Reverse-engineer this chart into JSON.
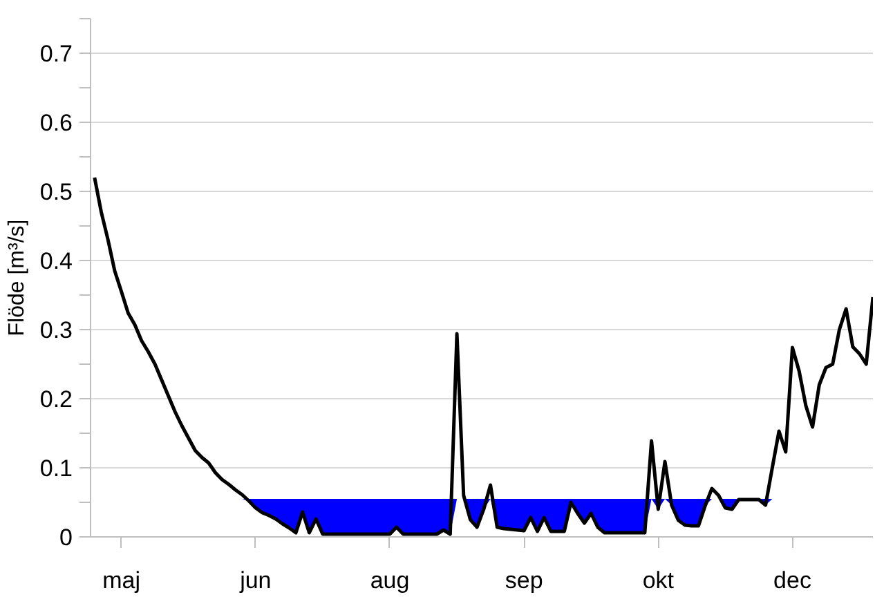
{
  "chart_data": {
    "type": "line",
    "ylabel": "Flöde [m³/s]",
    "ylim": [
      0,
      0.75
    ],
    "categories": [
      null,
      null,
      null,
      null,
      "maj",
      null,
      null,
      null,
      null,
      null,
      null,
      null,
      null,
      null,
      null,
      null,
      null,
      null,
      null,
      null,
      null,
      null,
      null,
      null,
      "jun",
      null,
      null,
      null,
      null,
      null,
      null,
      null,
      null,
      null,
      null,
      null,
      null,
      null,
      null,
      null,
      null,
      null,
      null,
      null,
      "aug",
      null,
      null,
      null,
      null,
      null,
      null,
      null,
      null,
      null,
      null,
      null,
      null,
      null,
      null,
      null,
      null,
      null,
      null,
      null,
      "sep",
      null,
      null,
      null,
      null,
      null,
      null,
      null,
      null,
      null,
      null,
      null,
      null,
      null,
      null,
      null,
      null,
      null,
      null,
      null,
      "okt",
      null,
      null,
      null,
      null,
      null,
      null,
      null,
      null,
      null,
      null,
      null,
      null,
      null,
      null,
      null,
      null,
      null,
      null,
      null,
      "dec",
      null,
      null,
      null,
      null,
      null,
      null,
      null,
      null,
      null,
      null,
      null,
      null
    ],
    "yticks": [
      0,
      0.1,
      0.2,
      0.3,
      0.4,
      0.5,
      0.6,
      0.7
    ],
    "grid": "y",
    "marker": "none",
    "line_style": "solid",
    "series": [
      {
        "color": "#000000",
        "values": [
          0.52,
          0.47,
          0.43,
          0.385,
          0.355,
          0.324,
          0.307,
          0.284,
          0.268,
          0.25,
          0.227,
          0.204,
          0.181,
          0.161,
          0.143,
          0.125,
          0.115,
          0.107,
          0.093,
          0.083,
          0.076,
          0.068,
          0.061,
          0.052,
          0.042,
          0.035,
          0.031,
          0.026,
          0.019,
          0.013,
          0.006,
          0.036,
          0.006,
          0.026,
          0.004,
          0.004,
          0.004,
          0.004,
          0.004,
          0.004,
          0.004,
          0.004,
          0.004,
          0.004,
          0.004,
          0.014,
          0.004,
          0.004,
          0.004,
          0.004,
          0.004,
          0.004,
          0.01,
          0.004,
          0.294,
          0.06,
          0.025,
          0.014,
          0.04,
          0.075,
          0.014,
          0.012,
          0.011,
          0.01,
          0.009,
          0.028,
          0.008,
          0.028,
          0.008,
          0.008,
          0.008,
          0.05,
          0.034,
          0.02,
          0.034,
          0.014,
          0.006,
          0.006,
          0.006,
          0.006,
          0.006,
          0.006,
          0.006,
          0.139,
          0.04,
          0.109,
          0.046,
          0.024,
          0.017,
          0.016,
          0.016,
          0.045,
          0.07,
          0.06,
          0.042,
          0.04,
          0.054,
          0.054,
          0.054,
          0.054,
          0.046,
          0.1,
          0.153,
          0.123,
          0.274,
          0.24,
          0.19,
          0.159,
          0.22,
          0.245,
          0.25,
          0.3,
          0.33,
          0.275,
          0.265,
          0.25,
          0.347
        ]
      },
      {
        "type": "area",
        "color": "#0000ff",
        "values": [
          null,
          null,
          null,
          null,
          null,
          null,
          null,
          null,
          null,
          null,
          null,
          null,
          null,
          null,
          null,
          null,
          null,
          null,
          null,
          null,
          null,
          null,
          0.055,
          0.055,
          0.055,
          0.055,
          0.055,
          0.055,
          0.055,
          0.055,
          0.055,
          0.055,
          0.055,
          0.055,
          0.055,
          0.055,
          0.055,
          0.055,
          0.055,
          0.055,
          0.055,
          0.055,
          0.055,
          0.055,
          0.055,
          0.055,
          0.055,
          0.055,
          0.055,
          0.055,
          0.055,
          0.055,
          0.055,
          0.055,
          0.055,
          0.055,
          0.055,
          0.055,
          0.055,
          0.055,
          0.055,
          0.055,
          0.055,
          0.055,
          0.055,
          0.055,
          0.055,
          0.055,
          0.055,
          0.055,
          0.055,
          0.055,
          0.055,
          0.055,
          0.055,
          0.055,
          0.055,
          0.055,
          0.055,
          0.055,
          0.055,
          0.055,
          0.055,
          0.055,
          0.055,
          0.055,
          0.055,
          0.055,
          0.055,
          0.055,
          0.055,
          0.055,
          0.055,
          0.055,
          0.055,
          0.055,
          0.055,
          0.055,
          0.055,
          0.055,
          0.055,
          0.055,
          null,
          null,
          null,
          null,
          null,
          null,
          null,
          null,
          null,
          null,
          null,
          null,
          null,
          null,
          null
        ]
      }
    ]
  }
}
